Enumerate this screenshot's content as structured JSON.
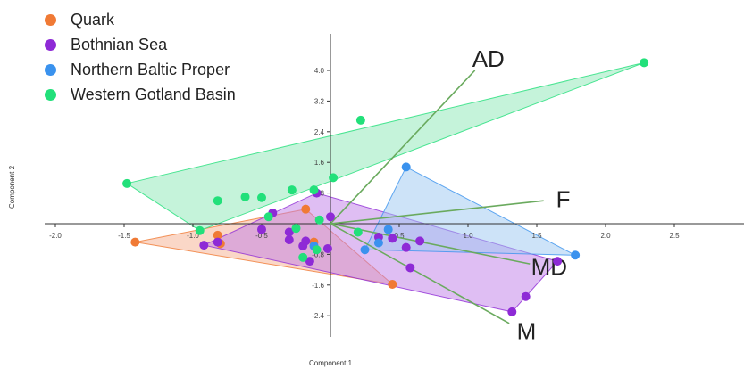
{
  "chart_data": {
    "type": "scatter",
    "xlabel": "Component 1",
    "ylabel": "Component 2",
    "xlim": [
      -2.0,
      2.9
    ],
    "ylim": [
      -2.9,
      4.9
    ],
    "x_ticks": [
      -2.0,
      -1.5,
      -1.0,
      -0.5,
      0.5,
      1.0,
      1.5,
      2.0,
      2.5
    ],
    "x_tick_labels": [
      "-2.0",
      "-1.5",
      "-1.0",
      "-0.5",
      "0.5",
      "1.0",
      "1.5",
      "2.0",
      "2.5"
    ],
    "y_ticks": [
      4.0,
      3.2,
      2.4,
      1.6,
      0.8,
      -0.8,
      -1.6,
      -2.4
    ],
    "y_tick_labels": [
      "4.0",
      "3.2",
      "2.4",
      "1.6",
      "0.8",
      "-0.8",
      "-1.6",
      "-2.4"
    ],
    "grid": false,
    "legend_position": "top-left",
    "series": [
      {
        "name": "Quark",
        "color": "#f07a35",
        "hull_color": "#f5b08f",
        "points": [
          [
            -1.42,
            -0.48
          ],
          [
            -0.82,
            -0.3
          ],
          [
            -0.8,
            -0.52
          ],
          [
            -0.18,
            0.38
          ],
          [
            -0.12,
            -0.48
          ],
          [
            0.45,
            -1.58
          ]
        ],
        "hull": [
          [
            -1.42,
            -0.48
          ],
          [
            -0.18,
            0.38
          ],
          [
            0.45,
            -1.58
          ]
        ]
      },
      {
        "name": "Bothnian Sea",
        "color": "#8e2ad6",
        "hull_color": "#c07ee8",
        "points": [
          [
            -0.92,
            -0.56
          ],
          [
            -0.82,
            -0.48
          ],
          [
            -0.5,
            -0.15
          ],
          [
            -0.42,
            0.28
          ],
          [
            -0.3,
            -0.42
          ],
          [
            -0.3,
            -0.22
          ],
          [
            -0.2,
            -0.58
          ],
          [
            -0.18,
            -0.45
          ],
          [
            -0.15,
            -0.98
          ],
          [
            -0.1,
            0.8
          ],
          [
            0.0,
            0.18
          ],
          [
            -0.02,
            -0.65
          ],
          [
            0.35,
            -0.35
          ],
          [
            0.45,
            -0.38
          ],
          [
            0.55,
            -0.62
          ],
          [
            0.65,
            -0.45
          ],
          [
            0.58,
            -1.15
          ],
          [
            1.65,
            -0.98
          ],
          [
            1.42,
            -1.9
          ],
          [
            1.32,
            -2.3
          ]
        ],
        "hull": [
          [
            -0.92,
            -0.56
          ],
          [
            -0.1,
            0.8
          ],
          [
            1.65,
            -0.98
          ],
          [
            1.32,
            -2.3
          ]
        ]
      },
      {
        "name": "Northern Baltic Proper",
        "color": "#3a92ee",
        "hull_color": "#9cc8f2",
        "points": [
          [
            0.55,
            1.48
          ],
          [
            1.78,
            -0.82
          ],
          [
            0.35,
            -0.5
          ],
          [
            0.42,
            -0.15
          ],
          [
            0.25,
            -0.68
          ],
          [
            -0.12,
            -0.58
          ]
        ],
        "hull": [
          [
            0.55,
            1.48
          ],
          [
            1.78,
            -0.82
          ],
          [
            0.25,
            -0.68
          ]
        ]
      },
      {
        "name": "Western Gotland Basin",
        "color": "#22e07a",
        "hull_color": "#8ce8b6",
        "points": [
          [
            2.28,
            4.2
          ],
          [
            -1.48,
            1.05
          ],
          [
            0.22,
            2.7
          ],
          [
            0.02,
            1.2
          ],
          [
            -0.82,
            0.6
          ],
          [
            -0.62,
            0.7
          ],
          [
            -0.5,
            0.68
          ],
          [
            -0.28,
            0.88
          ],
          [
            -0.12,
            0.88
          ],
          [
            -0.95,
            -0.18
          ],
          [
            -0.45,
            0.18
          ],
          [
            -0.25,
            -0.12
          ],
          [
            -0.1,
            -0.68
          ],
          [
            -0.2,
            -0.88
          ],
          [
            -0.08,
            0.1
          ],
          [
            0.2,
            -0.22
          ]
        ],
        "hull": [
          [
            -1.48,
            1.05
          ],
          [
            2.28,
            4.2
          ],
          [
            -0.95,
            -0.18
          ]
        ]
      }
    ],
    "biplot_vectors": [
      {
        "label": "AD",
        "end": [
          1.05,
          4.0
        ]
      },
      {
        "label": "F",
        "end": [
          1.55,
          0.6
        ]
      },
      {
        "label": "MD",
        "end": [
          1.45,
          -1.05
        ]
      },
      {
        "label": "M",
        "end": [
          1.3,
          -2.6
        ]
      }
    ],
    "vector_color": "#6aaa5e"
  }
}
